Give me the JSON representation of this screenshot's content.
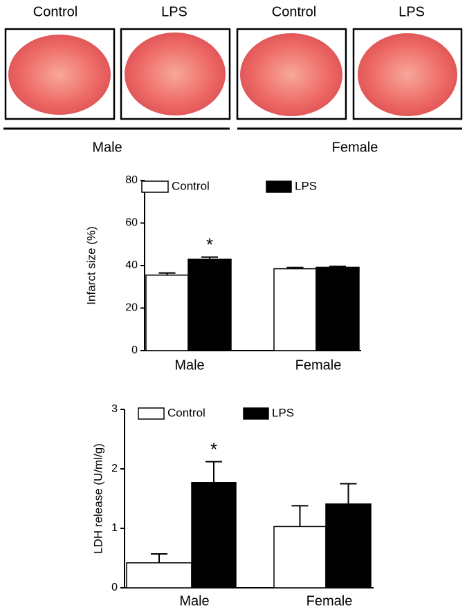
{
  "images": {
    "labels": [
      "Control",
      "LPS",
      "Control",
      "LPS"
    ],
    "groups": [
      "Male",
      "Female"
    ]
  },
  "chart_data": [
    {
      "type": "bar",
      "y_label": "Infarct size (%)",
      "categories": [
        "Male",
        "Female"
      ],
      "series": [
        {
          "name": "Control",
          "color": "#ffffff",
          "values": [
            35.5,
            38.5
          ],
          "errors": [
            1.0,
            0.6
          ]
        },
        {
          "name": "LPS",
          "color": "#000000",
          "values": [
            43,
            39.2
          ],
          "errors": [
            1.0,
            0.4
          ]
        }
      ],
      "ylim": [
        0,
        80
      ],
      "yticks": [
        0,
        20,
        40,
        60,
        80
      ],
      "annotation": "*"
    },
    {
      "type": "bar",
      "y_label": "LDH release (U/ml/g)",
      "categories": [
        "Male",
        "Female"
      ],
      "series": [
        {
          "name": "Control",
          "color": "#ffffff",
          "values": [
            0.42,
            1.03
          ],
          "errors": [
            0.15,
            0.35
          ]
        },
        {
          "name": "LPS",
          "color": "#000000",
          "values": [
            1.77,
            1.41
          ],
          "errors": [
            0.35,
            0.34
          ]
        }
      ],
      "ylim": [
        0,
        3
      ],
      "yticks": [
        0,
        1,
        2,
        3
      ],
      "annotation": "*"
    }
  ]
}
